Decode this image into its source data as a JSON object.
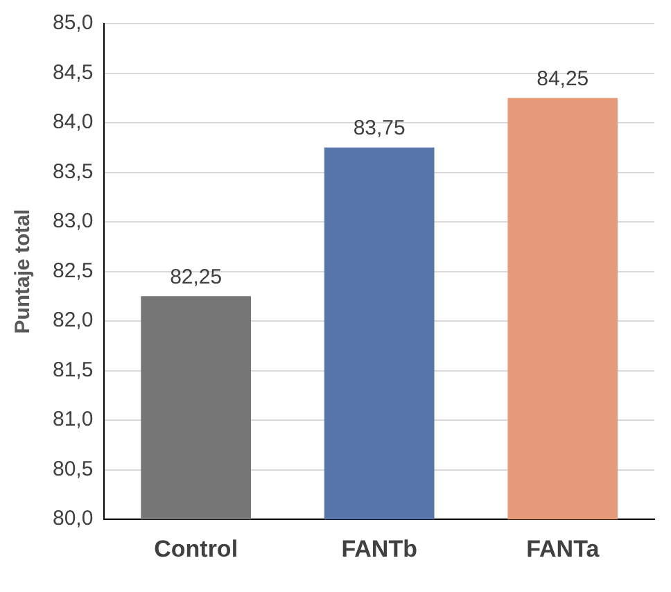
{
  "chart_data": {
    "type": "bar",
    "ylabel": "Puntaje total",
    "categories": [
      "Control",
      "FANTb",
      "FANTa"
    ],
    "values": [
      82.25,
      83.75,
      84.25
    ],
    "value_labels": [
      "82,25",
      "83,75",
      "84,25"
    ],
    "colors": [
      "#767676",
      "#5875a9",
      "#e69b7b"
    ],
    "ylim": [
      80,
      85
    ],
    "yticks": [
      {
        "value": 80,
        "label": "80,0"
      },
      {
        "value": 80.5,
        "label": "80,5"
      },
      {
        "value": 81,
        "label": "81,0"
      },
      {
        "value": 81.5,
        "label": "81,5"
      },
      {
        "value": 82,
        "label": "82,0"
      },
      {
        "value": 82.5,
        "label": "82,5"
      },
      {
        "value": 83,
        "label": "83,0"
      },
      {
        "value": 83.5,
        "label": "83,5"
      },
      {
        "value": 84,
        "label": "84,0"
      },
      {
        "value": 84.5,
        "label": "84,5"
      },
      {
        "value": 85,
        "label": "85,0"
      }
    ],
    "grid": "y",
    "legend": false
  }
}
